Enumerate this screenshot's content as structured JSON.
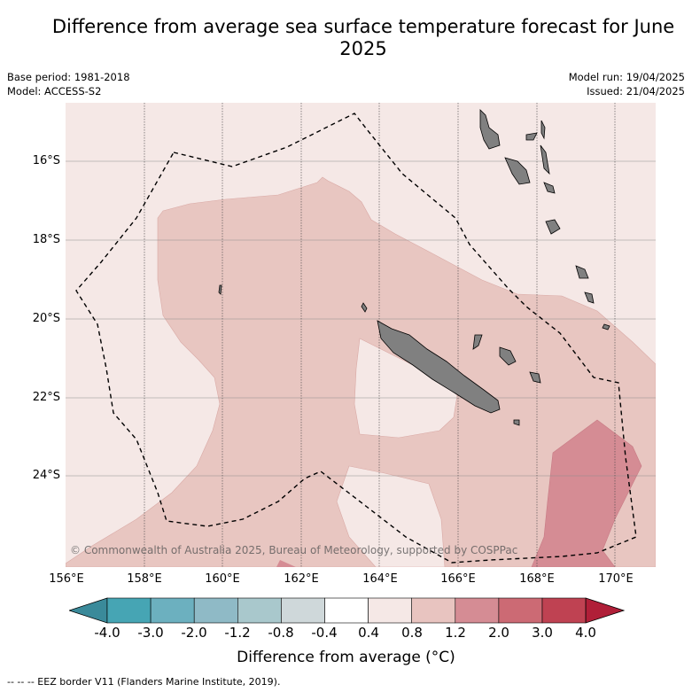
{
  "title": "Difference from average sea surface temperature forecast for June 2025",
  "meta_left": {
    "base_period": "Base period: 1981-2018",
    "model": "Model: ACCESS-S2"
  },
  "meta_right": {
    "model_run": "Model run: 19/04/2025",
    "issued": "Issued: 21/04/2025"
  },
  "map": {
    "lat_labels": [
      "16°S",
      "18°S",
      "20°S",
      "22°S",
      "24°S"
    ],
    "lon_labels": [
      "156°E",
      "158°E",
      "160°E",
      "162°E",
      "164°E",
      "166°E",
      "168°E",
      "170°E"
    ],
    "credit": "© Commonwealth of Australia 2025, Bureau of Meteorology, supported by COSPPac",
    "land_color": "#808080",
    "eez_line": "dashed black"
  },
  "colorbar": {
    "ticks": [
      "-4.0",
      "-3.0",
      "-2.0",
      "-1.2",
      "-0.8",
      "-0.4",
      "0.4",
      "0.8",
      "1.2",
      "2.0",
      "3.0",
      "4.0"
    ],
    "colors": [
      "#3a8a9a",
      "#46a5b4",
      "#6cb0bf",
      "#8fbac6",
      "#a9c8cc",
      "#cfd8da",
      "#ffffff",
      "#f5e8e6",
      "#e8c4c0",
      "#d58c94",
      "#cc6a74",
      "#bf4252",
      "#b01f38"
    ],
    "title": "Difference from average (°C)"
  },
  "footnote": "--  --  -- EEZ border V11 (Flanders Marine Institute, 2019)."
}
